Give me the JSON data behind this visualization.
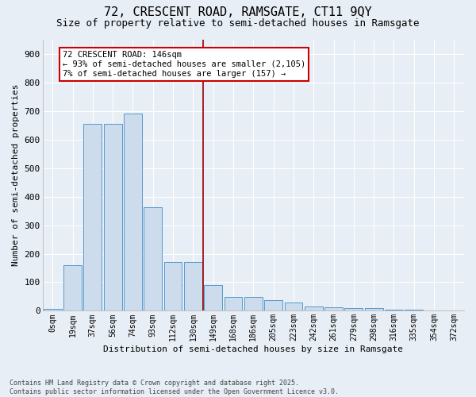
{
  "title1": "72, CRESCENT ROAD, RAMSGATE, CT11 9QY",
  "title2": "Size of property relative to semi-detached houses in Ramsgate",
  "xlabel": "Distribution of semi-detached houses by size in Ramsgate",
  "ylabel": "Number of semi-detached properties",
  "categories": [
    "0sqm",
    "19sqm",
    "37sqm",
    "56sqm",
    "74sqm",
    "93sqm",
    "112sqm",
    "130sqm",
    "149sqm",
    "168sqm",
    "186sqm",
    "205sqm",
    "223sqm",
    "242sqm",
    "261sqm",
    "279sqm",
    "298sqm",
    "316sqm",
    "335sqm",
    "354sqm",
    "372sqm"
  ],
  "bar_values": [
    8,
    160,
    655,
    655,
    690,
    363,
    170,
    170,
    90,
    48,
    48,
    38,
    30,
    15,
    13,
    10,
    10,
    5,
    4,
    0,
    0
  ],
  "bar_color": "#ccdcec",
  "bar_edge_color": "#5599cc",
  "vline_x": 7.5,
  "vline_color": "#990000",
  "annotation_text": "72 CRESCENT ROAD: 146sqm\n← 93% of semi-detached houses are smaller (2,105)\n7% of semi-detached houses are larger (157) →",
  "annotation_box_color": "white",
  "annotation_box_edge_color": "#cc0000",
  "ylim": [
    0,
    950
  ],
  "yticks": [
    0,
    100,
    200,
    300,
    400,
    500,
    600,
    700,
    800,
    900
  ],
  "footer1": "Contains HM Land Registry data © Crown copyright and database right 2025.",
  "footer2": "Contains public sector information licensed under the Open Government Licence v3.0.",
  "bg_color": "#e8eef5",
  "grid_color": "#ffffff",
  "title_fontsize": 11,
  "subtitle_fontsize": 9
}
